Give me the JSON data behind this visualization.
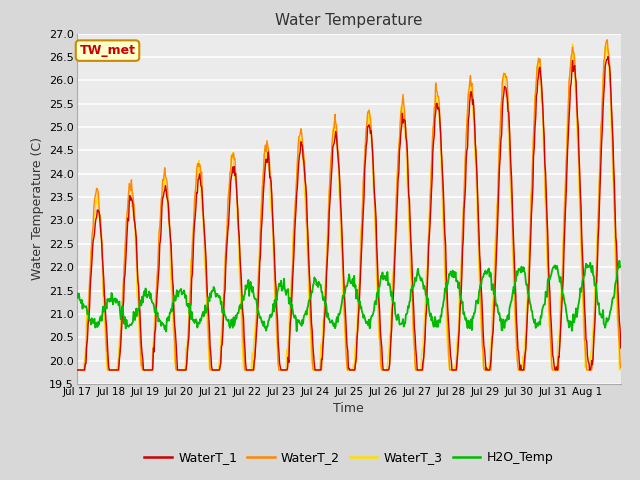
{
  "title": "Water Temperature",
  "xlabel": "Time",
  "ylabel": "Water Temperature (C)",
  "ylim": [
    19.5,
    27.0
  ],
  "yticks": [
    19.5,
    20.0,
    20.5,
    21.0,
    21.5,
    22.0,
    22.5,
    23.0,
    23.5,
    24.0,
    24.5,
    25.0,
    25.5,
    26.0,
    26.5,
    27.0
  ],
  "xtick_labels": [
    "Jul 17",
    "Jul 18",
    "Jul 19",
    "Jul 20",
    "Jul 21",
    "Jul 22",
    "Jul 23",
    "Jul 24",
    "Jul 25",
    "Jul 26",
    "Jul 27",
    "Jul 28",
    "Jul 29",
    "Jul 30",
    "Jul 31",
    "Aug 1"
  ],
  "background_color": "#d8d8d8",
  "plot_bg_color": "#ebebeb",
  "grid_color": "#ffffff",
  "waterT1_color": "#cc0000",
  "waterT2_color": "#ff8800",
  "waterT3_color": "#ffdd00",
  "h2o_color": "#00bb00",
  "annotation_text": "TW_met",
  "annotation_bg": "#ffffcc",
  "annotation_border": "#cc8800",
  "annotation_text_color": "#cc0000",
  "legend_labels": [
    "WaterT_1",
    "WaterT_2",
    "WaterT_3",
    "H2O_Temp"
  ],
  "n_days": 16,
  "pts_per_day": 48
}
